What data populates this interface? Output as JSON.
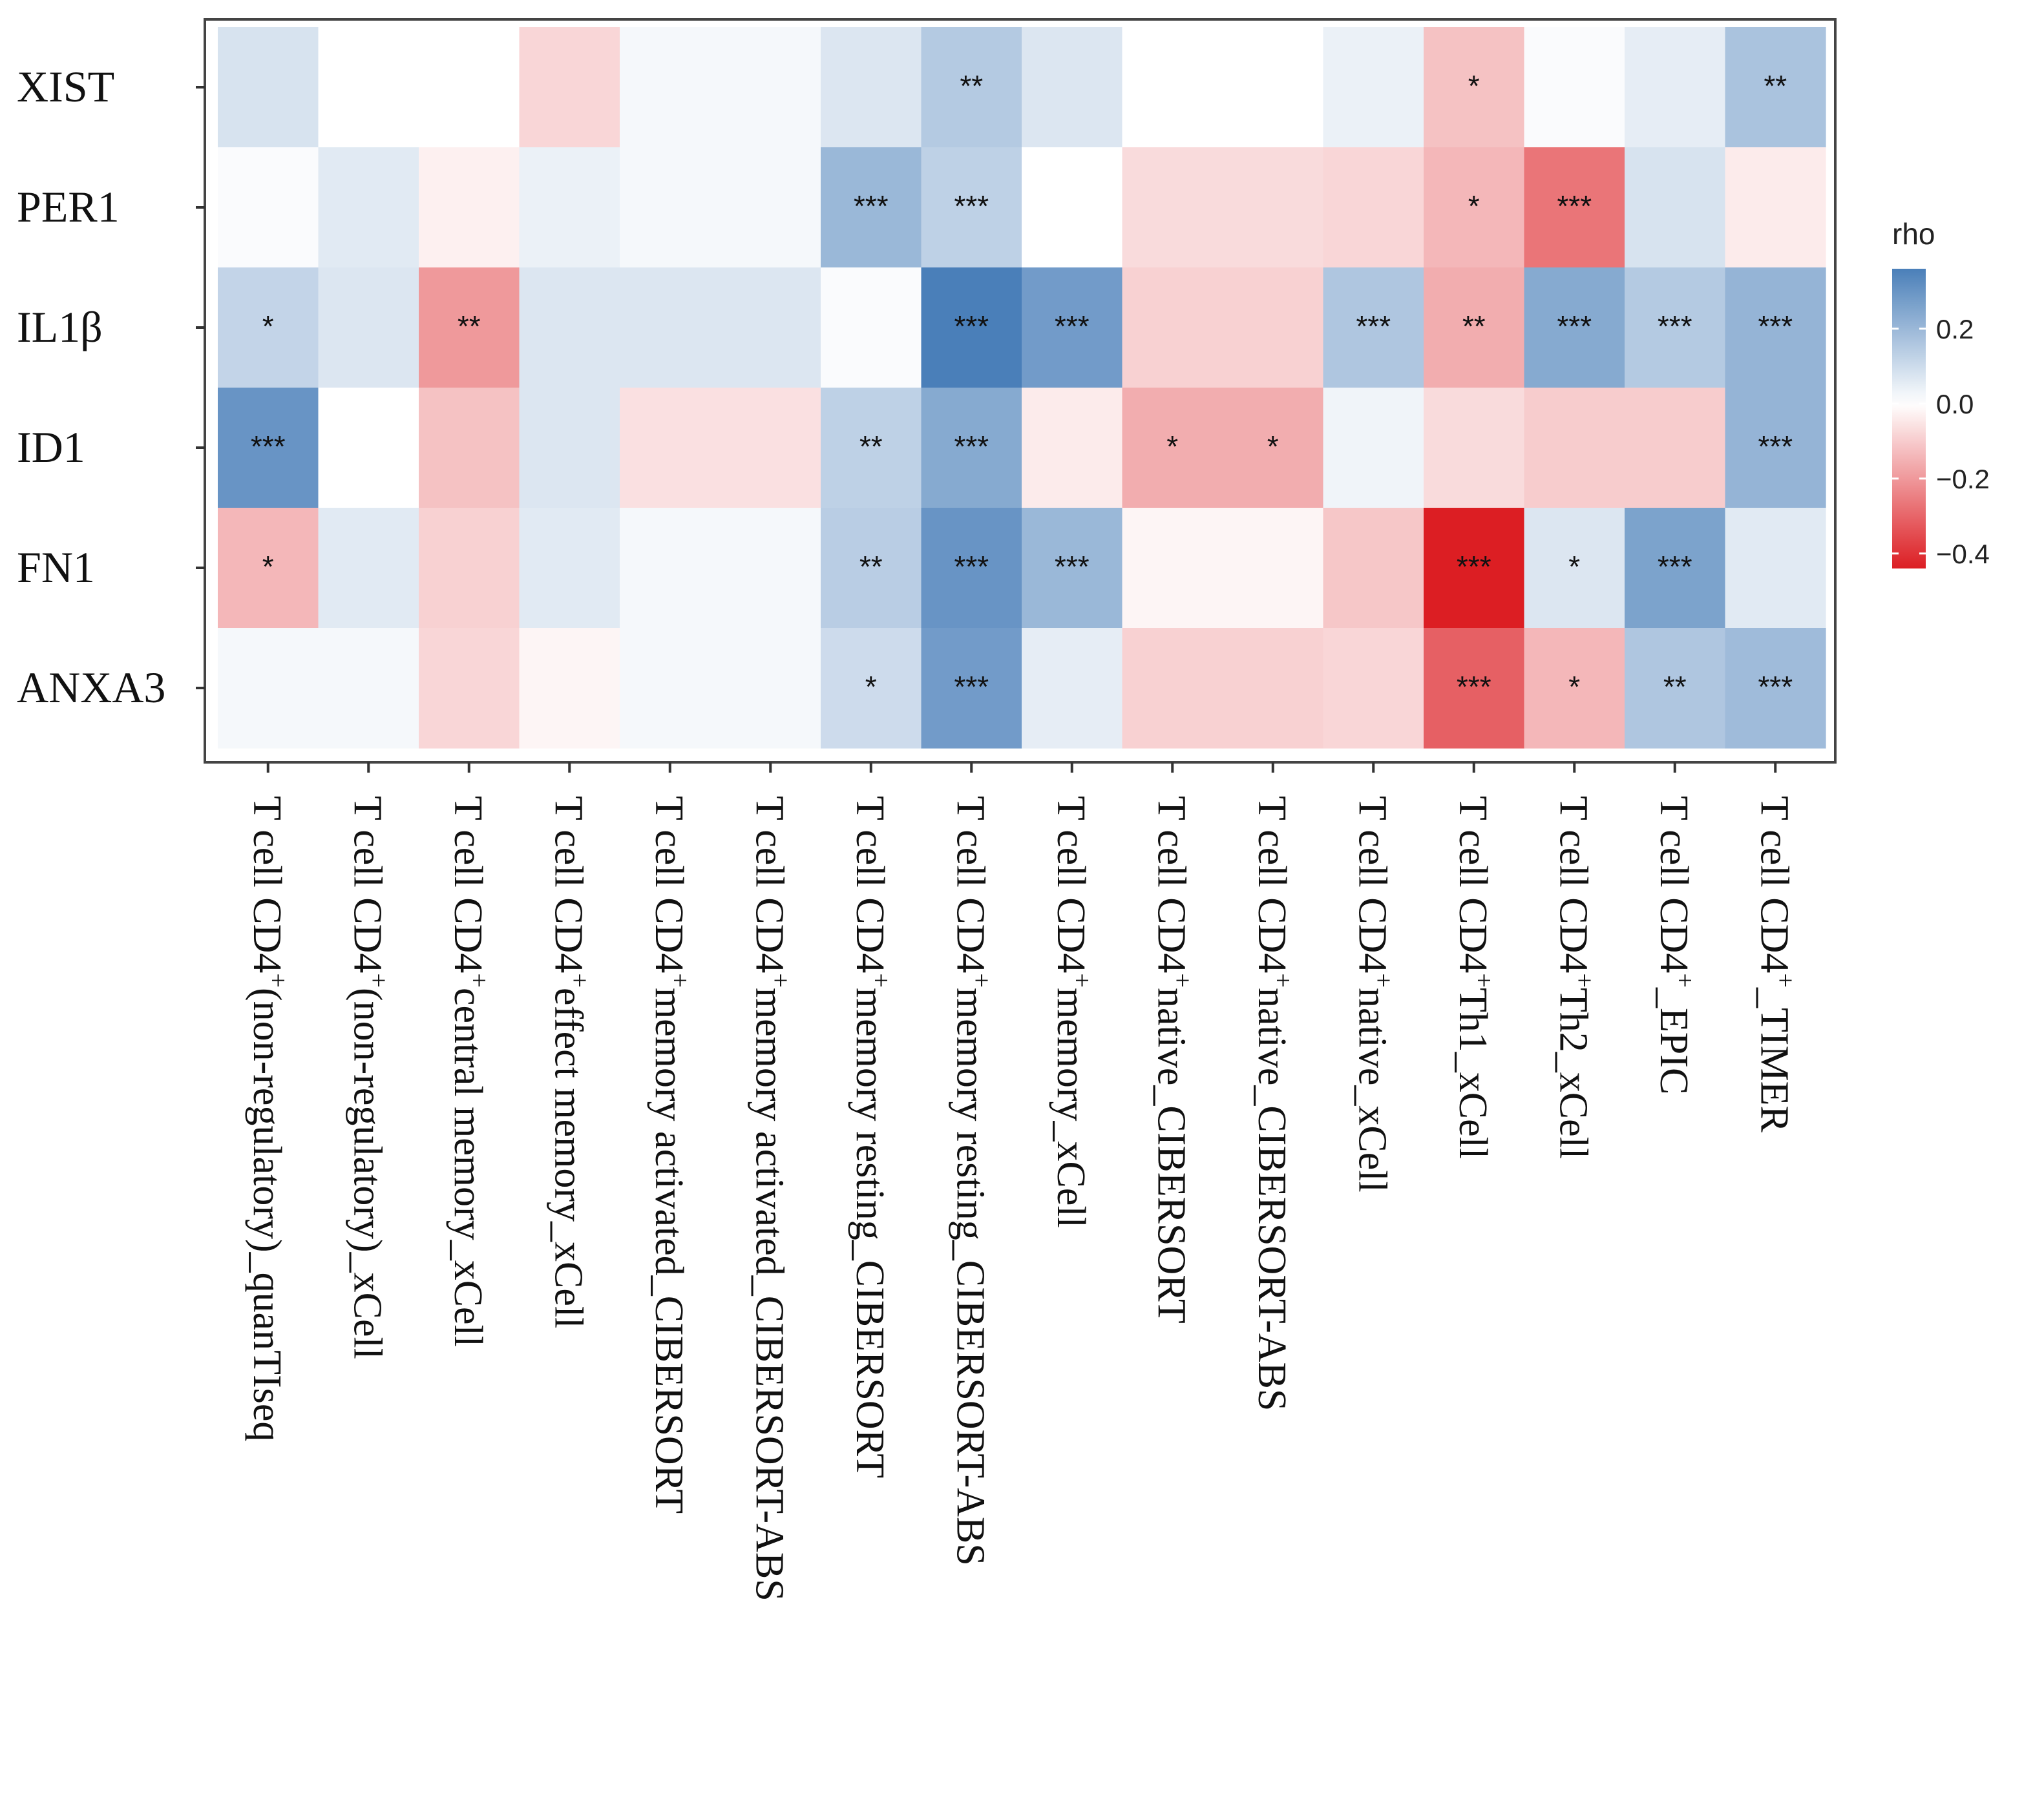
{
  "chart_data": {
    "type": "heatmap",
    "legend": {
      "title": "rho",
      "ticks": [
        {
          "value": 0.2,
          "label": "0.2"
        },
        {
          "value": 0.0,
          "label": "0.0"
        },
        {
          "value": -0.2,
          "label": "−0.2"
        },
        {
          "value": -0.4,
          "label": "−0.4"
        }
      ],
      "range": [
        -0.44,
        0.36
      ],
      "placement": "right",
      "colors": {
        "low": "#dc1e23",
        "mid": "#ffffff",
        "high": "#4a7fb9"
      }
    },
    "rows": [
      "XIST",
      "PER1",
      "IL1β",
      "ID1",
      "FN1",
      "ANXA3"
    ],
    "columns": [
      {
        "pre": "T cell CD4",
        "sup": "+",
        "post": "(non-regulatory)_quanTIseq"
      },
      {
        "pre": "T cell CD4",
        "sup": "+",
        "post": "(non-regulatory)_xCell"
      },
      {
        "pre": "T cell CD4",
        "sup": "+",
        "post": "central memory_xCell"
      },
      {
        "pre": "T cell CD4",
        "sup": "+",
        "post": "effect memory_xCell"
      },
      {
        "pre": "T cell CD4",
        "sup": "+",
        "post": "memory activated_CIBERSORT"
      },
      {
        "pre": "T cell CD4",
        "sup": "+",
        "post": "memory activated_CIBERSORT-ABS"
      },
      {
        "pre": "T cell CD4",
        "sup": "+",
        "post": "memory resting_CIBERSORT"
      },
      {
        "pre": "T cell CD4",
        "sup": "+",
        "post": "memory resting_CIBERSORT-ABS"
      },
      {
        "pre": "T cell CD4",
        "sup": "+",
        "post": "memory_xCell"
      },
      {
        "pre": "T cell CD4",
        "sup": "+",
        "post": "native_CIBERSORT"
      },
      {
        "pre": "T cell CD4",
        "sup": "+",
        "post": "native_CIBERSORT-ABS"
      },
      {
        "pre": "T cell CD4",
        "sup": "+",
        "post": "native_xCell"
      },
      {
        "pre": "T cell CD4",
        "sup": "+",
        "post": "Th1_xCell"
      },
      {
        "pre": "T cell CD4",
        "sup": "+",
        "post": "Th2_xCell"
      },
      {
        "pre": "T cell CD4",
        "sup": "+",
        "post": "_EPIC"
      },
      {
        "pre": "T cell CD4",
        "sup": "+",
        "post": "_TIMER"
      }
    ],
    "values": [
      [
        0.08,
        0.0,
        0.0,
        -0.08,
        0.02,
        0.02,
        0.07,
        0.15,
        0.07,
        0.0,
        0.0,
        0.04,
        -0.12,
        0.01,
        0.05,
        0.17
      ],
      [
        0.01,
        0.06,
        -0.03,
        0.04,
        0.02,
        0.02,
        0.2,
        0.13,
        0.0,
        -0.07,
        -0.07,
        -0.08,
        -0.14,
        -0.27,
        0.08,
        -0.04
      ],
      [
        0.12,
        0.07,
        -0.2,
        0.07,
        0.07,
        0.07,
        0.01,
        0.36,
        0.28,
        -0.09,
        -0.09,
        0.16,
        -0.16,
        0.24,
        0.15,
        0.21
      ],
      [
        0.3,
        0.0,
        -0.12,
        0.07,
        -0.06,
        -0.06,
        0.13,
        0.24,
        -0.04,
        -0.16,
        -0.16,
        0.03,
        -0.07,
        -0.1,
        -0.1,
        0.21
      ],
      [
        -0.14,
        0.06,
        -0.09,
        0.06,
        0.02,
        0.02,
        0.14,
        0.3,
        0.2,
        -0.02,
        -0.02,
        -0.11,
        -0.44,
        0.07,
        0.26,
        0.06
      ],
      [
        0.02,
        0.02,
        -0.08,
        -0.02,
        0.02,
        0.02,
        0.1,
        0.28,
        0.05,
        -0.09,
        -0.09,
        -0.08,
        -0.31,
        -0.14,
        0.16,
        0.19
      ]
    ],
    "significance": [
      [
        "",
        "",
        "",
        "",
        "",
        "",
        "",
        "**",
        "",
        "",
        "",
        "",
        "*",
        "",
        "",
        "**"
      ],
      [
        "",
        "",
        "",
        "",
        "",
        "",
        "***",
        "***",
        "",
        "",
        "",
        "",
        "*",
        "***",
        "",
        ""
      ],
      [
        "*",
        "",
        "**",
        "",
        "",
        "",
        "",
        "***",
        "***",
        "",
        "",
        "***",
        "**",
        "***",
        "***",
        "***"
      ],
      [
        "***",
        "",
        "",
        "",
        "",
        "",
        "**",
        "***",
        "",
        "*",
        "*",
        "",
        "",
        "",
        "",
        "***"
      ],
      [
        "*",
        "",
        "",
        "",
        "",
        "",
        "**",
        "***",
        "***",
        "",
        "",
        "",
        "***",
        "*",
        "***",
        ""
      ],
      [
        "",
        "",
        "",
        "",
        "",
        "",
        "*",
        "***",
        "",
        "",
        "",
        "",
        "***",
        "*",
        "**",
        "***"
      ]
    ]
  }
}
